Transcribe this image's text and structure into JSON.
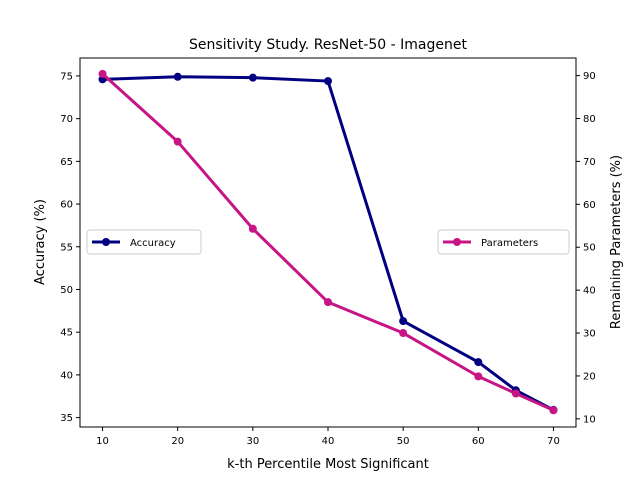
{
  "chart_data": {
    "type": "line",
    "title": "Sensitivity Study. ResNet-50 - Imagenet",
    "xlabel": "k-th Percentile Most Significant",
    "ylabel": "Accuracy (%)",
    "y2label": "Remaining Parameters (%)",
    "x": [
      10,
      20,
      30,
      40,
      50,
      60,
      65,
      70
    ],
    "xticks": [
      10,
      20,
      30,
      40,
      50,
      60,
      70
    ],
    "xlim": [
      7,
      73
    ],
    "ylim": [
      33.9,
      77.1
    ],
    "yticks": [
      35,
      40,
      45,
      50,
      55,
      60,
      65,
      70,
      75
    ],
    "y2lim": [
      8.1,
      94.1
    ],
    "y2ticks": [
      10,
      20,
      30,
      40,
      50,
      60,
      70,
      80,
      90
    ],
    "grid": false,
    "series": [
      {
        "name": "Accuracy",
        "axis": "left",
        "color": "#000080",
        "values": [
          74.6,
          74.9,
          74.8,
          74.4,
          46.3,
          41.5,
          38.2,
          35.9
        ],
        "legend_location": "center-left"
      },
      {
        "name": "Parameters",
        "axis": "right",
        "color": "#c71585",
        "values": [
          90.4,
          74.6,
          54.3,
          37.2,
          30.0,
          19.9,
          15.9,
          12.0
        ],
        "legend_location": "center-right"
      }
    ]
  }
}
